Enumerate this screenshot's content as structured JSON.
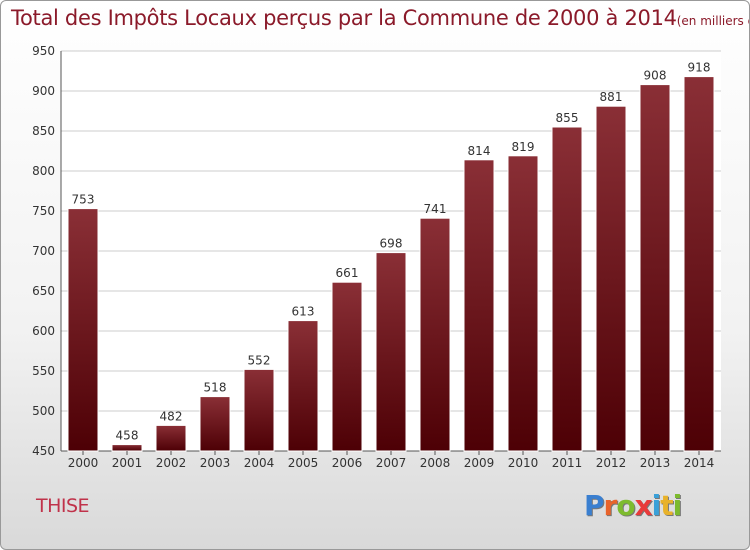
{
  "header": {
    "title": "Total des Impôts Locaux perçus par la Commune de 2000 à 2014",
    "unit": "(en milliers d'€)"
  },
  "footer": {
    "commune": "THISE",
    "logo_letters": [
      "P",
      "r",
      "o",
      "x",
      "i",
      "t",
      "i"
    ],
    "logo_colors": [
      "#3a7fd0",
      "#e8632b",
      "#7dbb2e",
      "#e83a3a",
      "#3aa0d8",
      "#e8b22b",
      "#7dbb2e"
    ]
  },
  "colors": {
    "bar_top": "#8a2f36",
    "bar_bottom": "#4d0005",
    "title": "#8b1a2a",
    "commune": "#c0324a"
  },
  "chart_data": {
    "type": "bar",
    "title": "Total des Impôts Locaux perçus par la Commune de 2000 à 2014",
    "xlabel": "",
    "ylabel": "",
    "ylim": [
      450,
      950
    ],
    "yticks": [
      450,
      500,
      550,
      600,
      650,
      700,
      750,
      800,
      850,
      900,
      950
    ],
    "grid": true,
    "categories": [
      "2000",
      "2001",
      "2002",
      "2003",
      "2004",
      "2005",
      "2006",
      "2007",
      "2008",
      "2009",
      "2010",
      "2011",
      "2012",
      "2013",
      "2014"
    ],
    "values": [
      753,
      458,
      482,
      518,
      552,
      613,
      661,
      698,
      741,
      814,
      819,
      855,
      881,
      908,
      918
    ]
  }
}
